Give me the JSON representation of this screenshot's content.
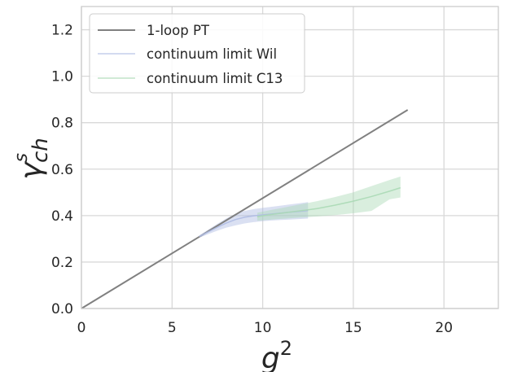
{
  "chart_data": {
    "type": "line",
    "xlabel": "g",
    "xlabel_sup": "2",
    "ylabel": "γ",
    "ylabel_sup": "s",
    "ylabel_sub": "ch",
    "xlim": [
      0,
      23
    ],
    "ylim": [
      0,
      1.3
    ],
    "xticks": [
      0,
      5,
      10,
      15,
      20
    ],
    "yticks": [
      0.0,
      0.2,
      0.4,
      0.6,
      0.8,
      1.0,
      1.2
    ],
    "xtick_labels": [
      "0",
      "5",
      "10",
      "15",
      "20"
    ],
    "ytick_labels": [
      "0.0",
      "0.2",
      "0.4",
      "0.6",
      "0.8",
      "1.0",
      "1.2"
    ],
    "grid": true,
    "legend_position": "top-left",
    "series": [
      {
        "name": "1-loop PT",
        "kind": "line",
        "color": "#808080",
        "x": [
          0,
          18
        ],
        "y": [
          0,
          0.855
        ]
      },
      {
        "name": "continuum limit Wil",
        "kind": "band",
        "color": "#aebbe3",
        "x": [
          6.5,
          7.0,
          7.5,
          8.0,
          8.5,
          9.0,
          9.5,
          10.0,
          10.5,
          11.0,
          11.5,
          12.0,
          12.5
        ],
        "y": [
          0.31,
          0.33,
          0.35,
          0.368,
          0.383,
          0.393,
          0.399,
          0.403,
          0.407,
          0.411,
          0.415,
          0.418,
          0.422
        ],
        "y_low": [
          0.305,
          0.32,
          0.335,
          0.348,
          0.358,
          0.366,
          0.372,
          0.376,
          0.379,
          0.381,
          0.383,
          0.385,
          0.387
        ],
        "y_high": [
          0.315,
          0.34,
          0.365,
          0.388,
          0.408,
          0.42,
          0.428,
          0.433,
          0.438,
          0.443,
          0.448,
          0.453,
          0.458
        ]
      },
      {
        "name": "continuum limit C13",
        "kind": "band",
        "color": "#aad9b5",
        "x": [
          9.7,
          10.5,
          11.0,
          12.0,
          13.0,
          14.0,
          15.0,
          16.0,
          17.0,
          17.6
        ],
        "y": [
          0.395,
          0.405,
          0.41,
          0.42,
          0.43,
          0.445,
          0.462,
          0.482,
          0.505,
          0.52
        ],
        "y_low": [
          0.378,
          0.383,
          0.386,
          0.391,
          0.396,
          0.402,
          0.41,
          0.42,
          0.47,
          0.478
        ],
        "y_high": [
          0.412,
          0.425,
          0.432,
          0.447,
          0.462,
          0.48,
          0.5,
          0.527,
          0.553,
          0.568
        ]
      }
    ]
  }
}
